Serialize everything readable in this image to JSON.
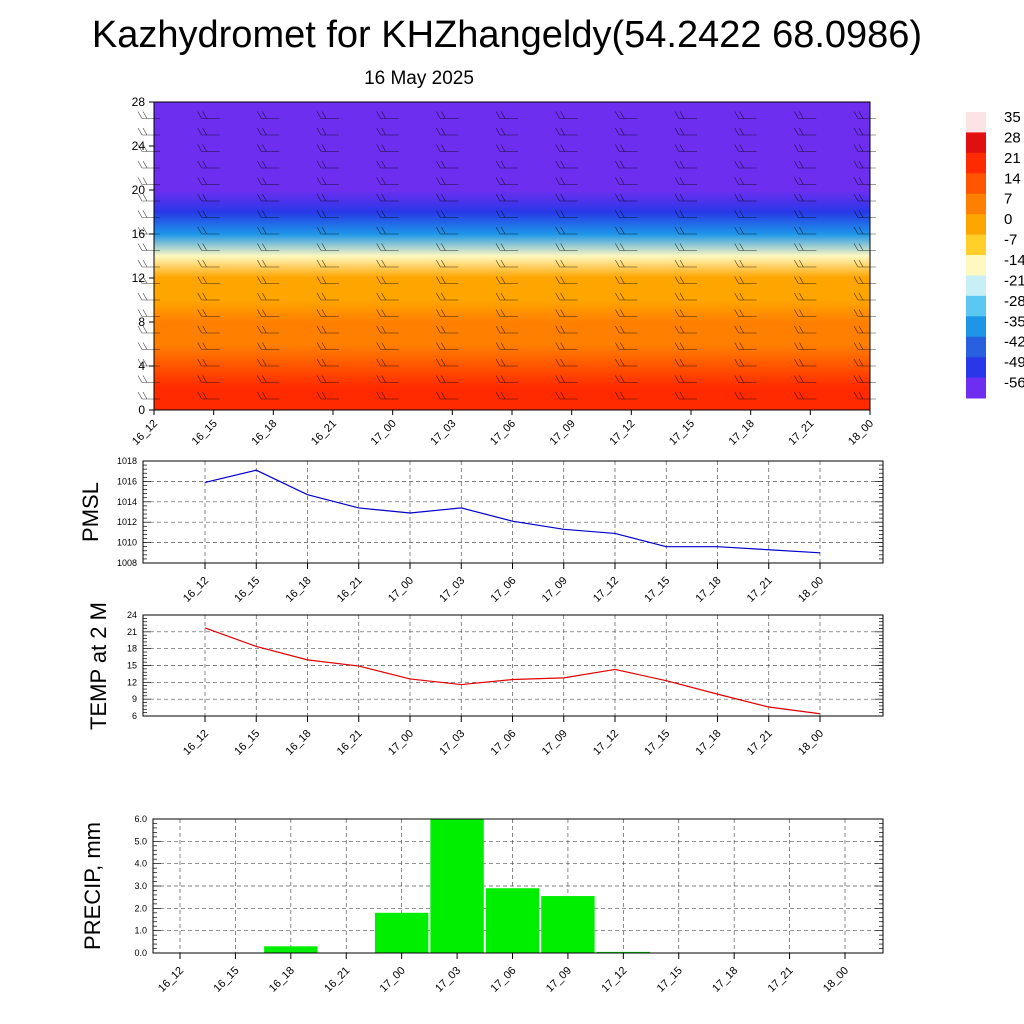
{
  "title": "Kazhydromet for KHZhangeldy(54.2422 68.0986)",
  "date": "16 May 2025",
  "colors": {
    "pmsl_line": "#0000cc",
    "temp_line": "#e00000",
    "precip_bar": "#00ee00"
  },
  "chart_data": [
    {
      "type": "heatmap",
      "description_key": "cross-section",
      "x_ticks": [
        "16_12",
        "16_15",
        "16_18",
        "16_21",
        "17_00",
        "17_03",
        "17_06",
        "17_09",
        "17_12",
        "17_15",
        "17_18",
        "17_21",
        "18_00"
      ],
      "y_ticks": [
        0,
        4,
        8,
        12,
        16,
        20,
        24,
        28
      ],
      "ylim": [
        0,
        28
      ],
      "levels": [
        0,
        2,
        4,
        6,
        8,
        10,
        12,
        14,
        16,
        18,
        20,
        22,
        24,
        26,
        28
      ],
      "temperature_by_level": [
        24,
        21,
        17,
        13,
        9,
        5,
        0,
        -12,
        -30,
        -44,
        -53,
        -57,
        -58,
        -59,
        -60
      ],
      "wind_barbs": true,
      "colorbar": {
        "labels": [
          "35",
          "28",
          "21",
          "14",
          "7",
          "0",
          "-7",
          "-14",
          "-21",
          "-28",
          "-35",
          "-42",
          "-49",
          "-56"
        ],
        "colors": [
          "#fde3e3",
          "#e01010",
          "#ff2a00",
          "#ff5500",
          "#ff8000",
          "#ffa500",
          "#ffcf2a",
          "#fff8c0",
          "#c8eef8",
          "#5ac8f0",
          "#1e96e8",
          "#2860e0",
          "#2838e8",
          "#6e2ef0"
        ]
      },
      "grid": false
    },
    {
      "type": "line",
      "ylabel": "PMSL",
      "x": [
        "16_12",
        "16_15",
        "16_18",
        "16_21",
        "17_00",
        "17_03",
        "17_06",
        "17_09",
        "17_12",
        "17_15",
        "17_18",
        "17_21",
        "18_00"
      ],
      "series": [
        {
          "values": [
            1015.9,
            1017.1,
            1014.7,
            1013.4,
            1012.9,
            1013.4,
            1012.1,
            1011.3,
            1010.9,
            1009.6,
            1009.6,
            1009.3,
            1009.0
          ]
        }
      ],
      "yticks": [
        "1008",
        "1010",
        "1012",
        "1014",
        "1016",
        "1018"
      ],
      "ylim": [
        1008,
        1018
      ],
      "grid": true
    },
    {
      "type": "line",
      "ylabel": "TEMP at 2 M",
      "x": [
        "16_12",
        "16_15",
        "16_18",
        "16_21",
        "17_00",
        "17_03",
        "17_06",
        "17_09",
        "17_12",
        "17_15",
        "17_18",
        "17_21",
        "18_00"
      ],
      "series": [
        {
          "values": [
            21.7,
            18.4,
            16.0,
            14.9,
            12.6,
            11.6,
            12.5,
            12.8,
            14.3,
            12.3,
            9.9,
            7.6,
            6.4
          ]
        }
      ],
      "yticks": [
        "6",
        "9",
        "12",
        "15",
        "18",
        "21",
        "24"
      ],
      "ylim": [
        6,
        24
      ],
      "grid": true
    },
    {
      "type": "bar",
      "ylabel": "PRECIP, mm",
      "categories": [
        "16_12",
        "16_15",
        "16_18",
        "16_21",
        "17_00",
        "17_03",
        "17_06",
        "17_09",
        "17_12",
        "17_15",
        "17_18",
        "17_21",
        "18_00"
      ],
      "values": [
        0.0,
        0.02,
        0.3,
        0.02,
        1.8,
        6.0,
        2.9,
        2.55,
        0.05,
        0.0,
        0.0,
        0.0,
        0.0
      ],
      "yticks": [
        "0.0",
        "1.0",
        "2.0",
        "3.0",
        "4.0",
        "5.0",
        "6.0"
      ],
      "ylim": [
        0,
        6
      ],
      "grid": true
    }
  ]
}
